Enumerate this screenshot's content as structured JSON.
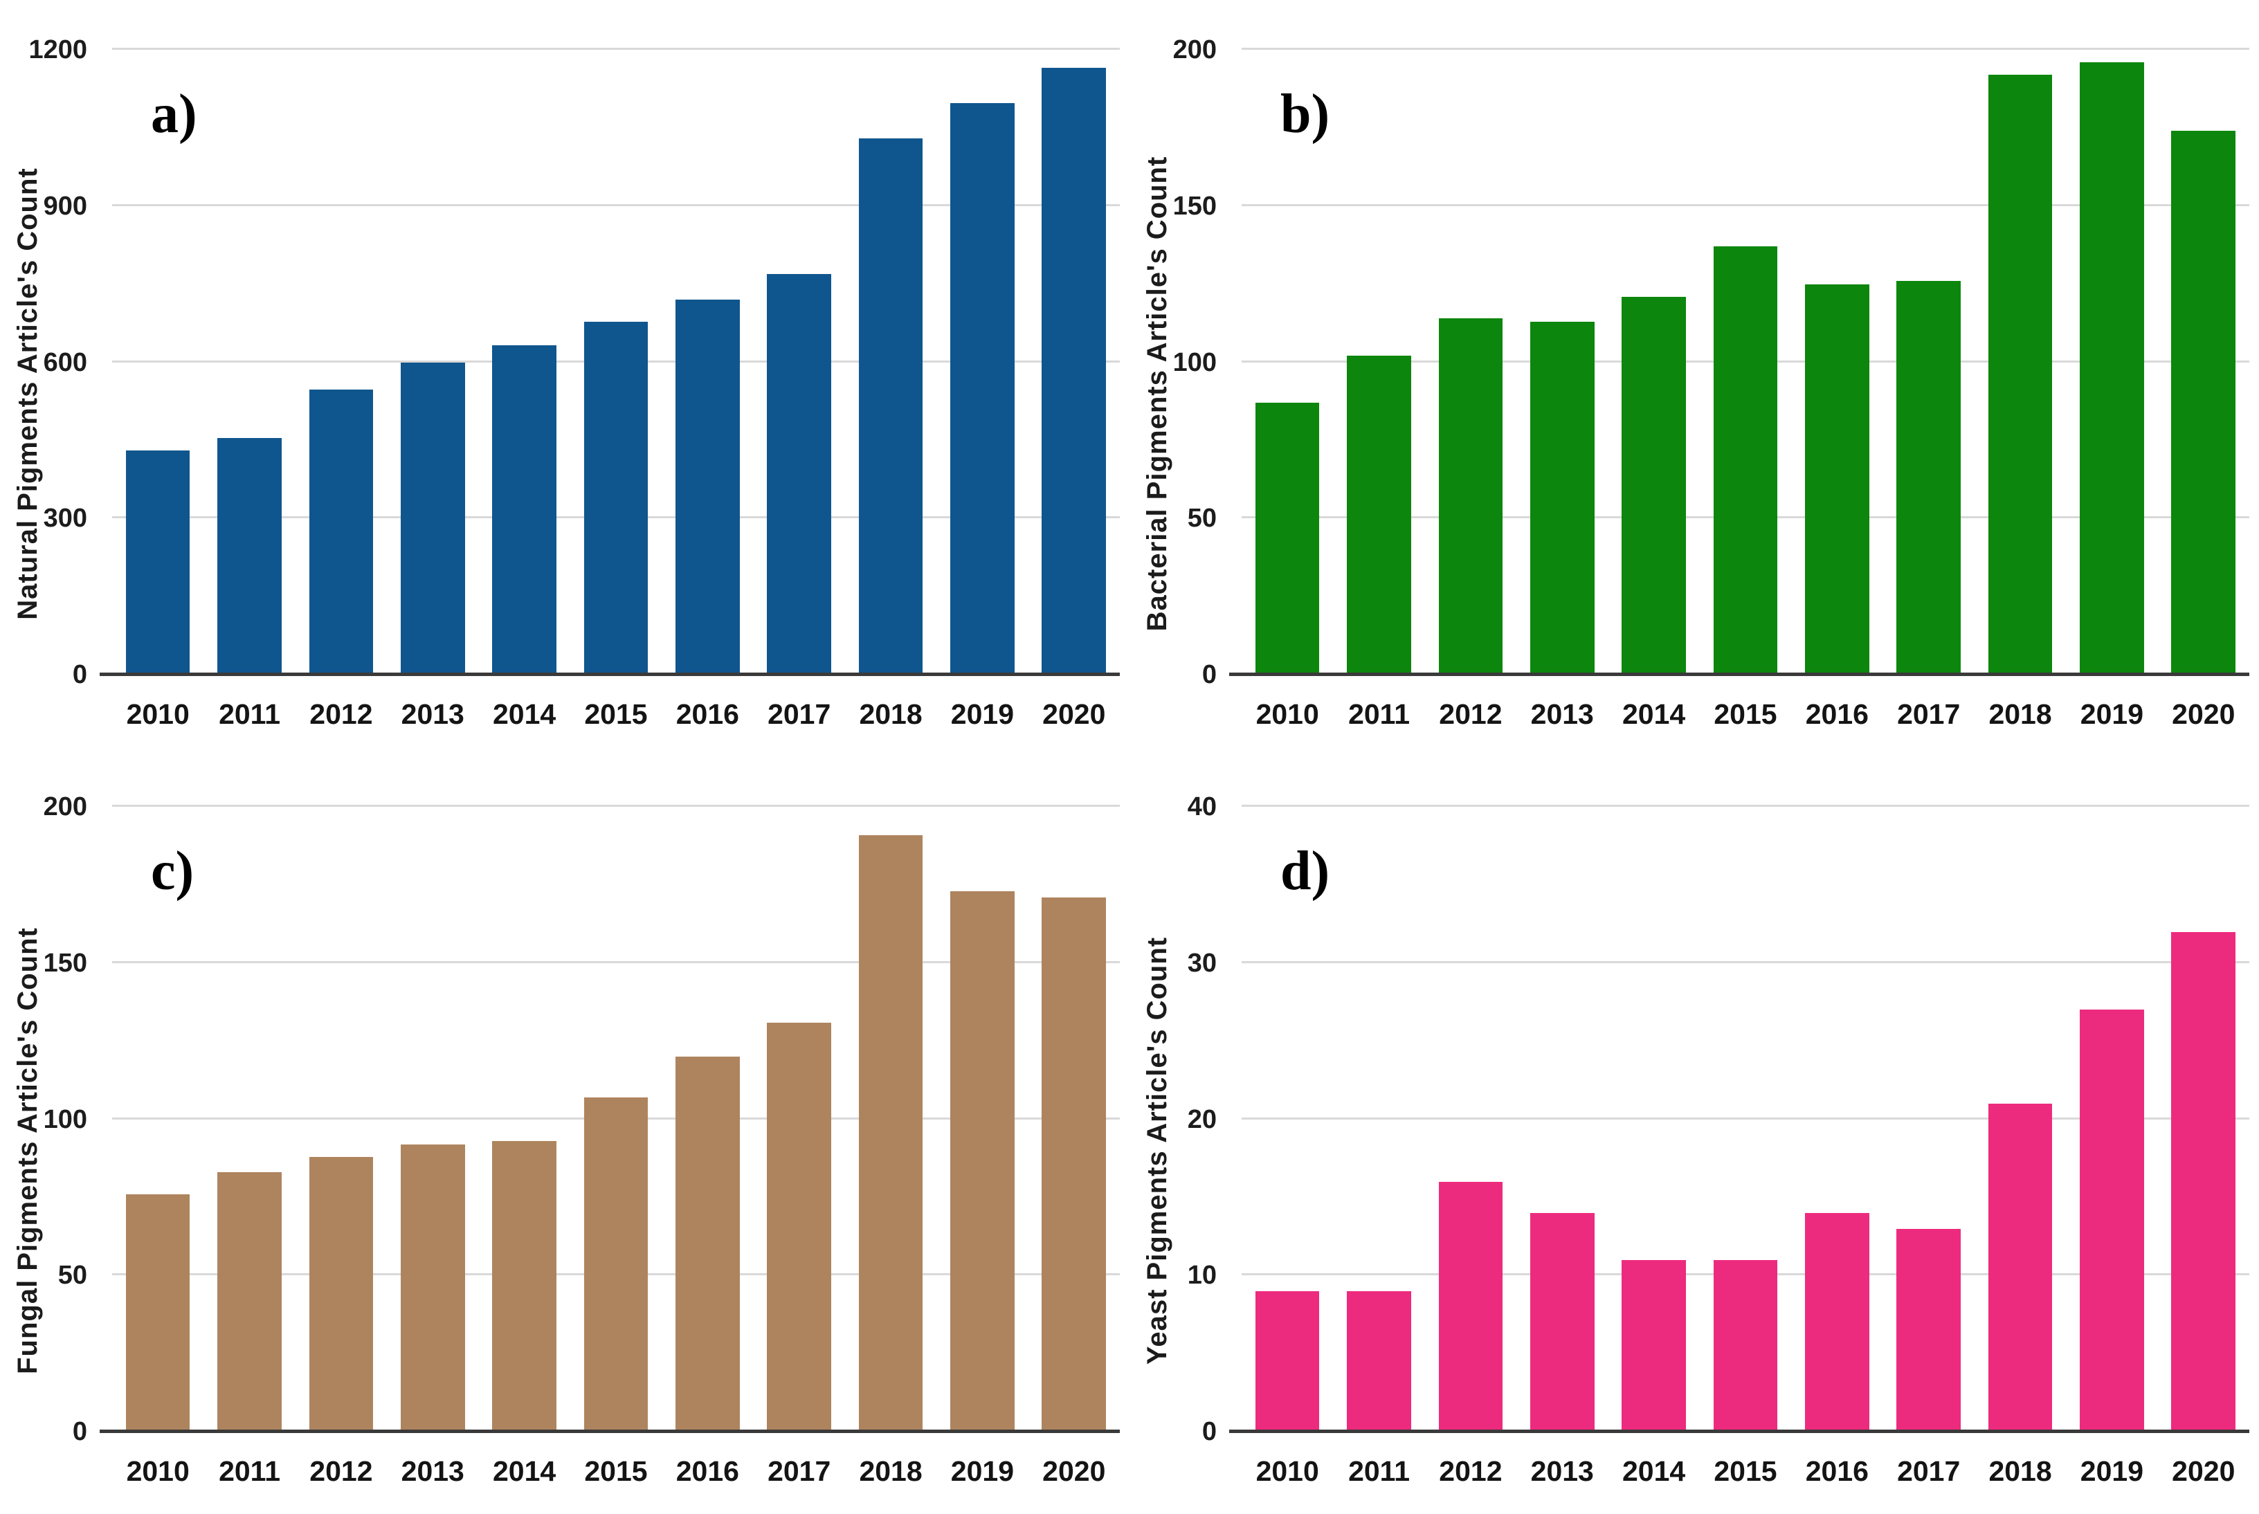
{
  "figure": {
    "background": "#ffffff",
    "grid_color": "#d9d9d9",
    "axis_color": "#3a3a3a",
    "text_color": "#1c1c1c"
  },
  "chart_data": [
    {
      "type": "bar",
      "panel_id": "a",
      "panel_letter": "a)",
      "ylabel": "Natural Pigments Article's Count",
      "xlabel": "",
      "bar_color": "#10568E",
      "ylim": [
        0,
        1200
      ],
      "yticks": [
        0,
        300,
        600,
        900,
        1200
      ],
      "grid": true,
      "legend_position": "none",
      "categories": [
        "2010",
        "2011",
        "2012",
        "2013",
        "2014",
        "2015",
        "2016",
        "2017",
        "2018",
        "2019",
        "2020"
      ],
      "values": [
        430,
        455,
        548,
        600,
        633,
        678,
        720,
        770,
        1030,
        1098,
        1166
      ]
    },
    {
      "type": "bar",
      "panel_id": "b",
      "panel_letter": "b)",
      "ylabel": "Bacterial Pigments Article's Count",
      "xlabel": "",
      "bar_color": "#0C860C",
      "ylim": [
        0,
        200
      ],
      "yticks": [
        0,
        50,
        100,
        150,
        200
      ],
      "grid": true,
      "legend_position": "none",
      "categories": [
        "2010",
        "2011",
        "2012",
        "2013",
        "2014",
        "2015",
        "2016",
        "2017",
        "2018",
        "2019",
        "2020"
      ],
      "values": [
        87,
        102,
        114,
        113,
        121,
        137,
        125,
        126,
        192,
        196,
        174
      ]
    },
    {
      "type": "bar",
      "panel_id": "c",
      "panel_letter": "c)",
      "ylabel": "Fungal Pigments Article's Count",
      "xlabel": "",
      "bar_color": "#AE845E",
      "ylim": [
        0,
        200
      ],
      "yticks": [
        0,
        50,
        100,
        150,
        200
      ],
      "grid": true,
      "legend_position": "none",
      "categories": [
        "2010",
        "2011",
        "2012",
        "2013",
        "2014",
        "2015",
        "2016",
        "2017",
        "2018",
        "2019",
        "2020"
      ],
      "values": [
        76,
        83,
        88,
        92,
        93,
        107,
        120,
        131,
        191,
        173,
        171
      ]
    },
    {
      "type": "bar",
      "panel_id": "d",
      "panel_letter": "d)",
      "ylabel": "Yeast Pigments Article's Count",
      "xlabel": "",
      "bar_color": "#ED2B7E",
      "ylim": [
        0,
        40
      ],
      "yticks": [
        0,
        10,
        20,
        30,
        40
      ],
      "grid": true,
      "legend_position": "none",
      "categories": [
        "2010",
        "2011",
        "2012",
        "2013",
        "2014",
        "2015",
        "2016",
        "2017",
        "2018",
        "2019",
        "2020"
      ],
      "values": [
        9,
        9,
        16,
        14,
        11,
        11,
        14,
        13,
        21,
        27,
        32
      ]
    }
  ]
}
